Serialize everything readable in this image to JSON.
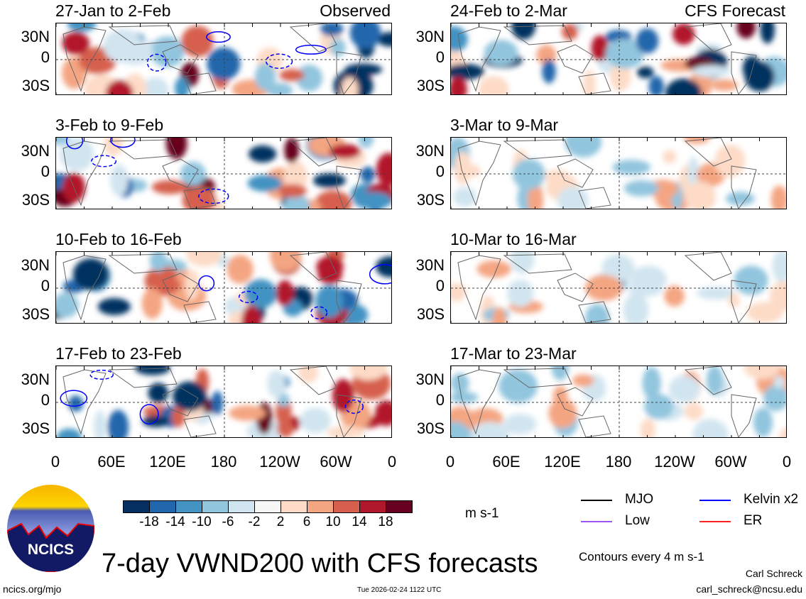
{
  "title": "7-day VWND200 with CFS forecasts",
  "logo_text": "NCICS",
  "site": "ncics.org/mjo",
  "timestamp": "Tue 2026-02-24 1122 UTC",
  "author": "Carl Schreck",
  "email": "carl_schreck@ncsu.edu",
  "contours_note": "Contours every 4 m s-1",
  "units": "m s-1",
  "chart_data": {
    "type": "heatmap",
    "variable": "200-hPa meridional wind anomaly",
    "yticks": [
      "30N",
      "0",
      "30S"
    ],
    "xticks": [
      "0",
      "60E",
      "120E",
      "180",
      "120W",
      "60W",
      "0"
    ],
    "colorbar": {
      "levels": [
        "-18",
        "-14",
        "-10",
        "-6",
        "-2",
        "2",
        "6",
        "10",
        "14",
        "18"
      ],
      "colors": [
        "#053061",
        "#2166ac",
        "#4393c3",
        "#92c5de",
        "#d1e5f0",
        "#f7f7f7",
        "#fddbc7",
        "#f4a582",
        "#d6604d",
        "#b2182b",
        "#67001f"
      ]
    },
    "legend": [
      {
        "label": "MJO",
        "color": "#000000"
      },
      {
        "label": "Kelvin x2",
        "color": "#0000ff"
      },
      {
        "label": "Low",
        "color": "#9955ee"
      },
      {
        "label": "ER",
        "color": "#ff2222"
      }
    ],
    "panels_left": [
      {
        "title": "27-Jan to 2-Feb",
        "tag": "Observed"
      },
      {
        "title": "3-Feb to 9-Feb"
      },
      {
        "title": "10-Feb to 16-Feb"
      },
      {
        "title": "17-Feb to 23-Feb"
      }
    ],
    "panels_right": [
      {
        "title": "24-Feb to 2-Mar",
        "tag": "CFS Forecast"
      },
      {
        "title": "3-Mar to 9-Mar"
      },
      {
        "title": "10-Mar to 16-Mar"
      },
      {
        "title": "17-Mar to 23-Mar"
      }
    ]
  }
}
